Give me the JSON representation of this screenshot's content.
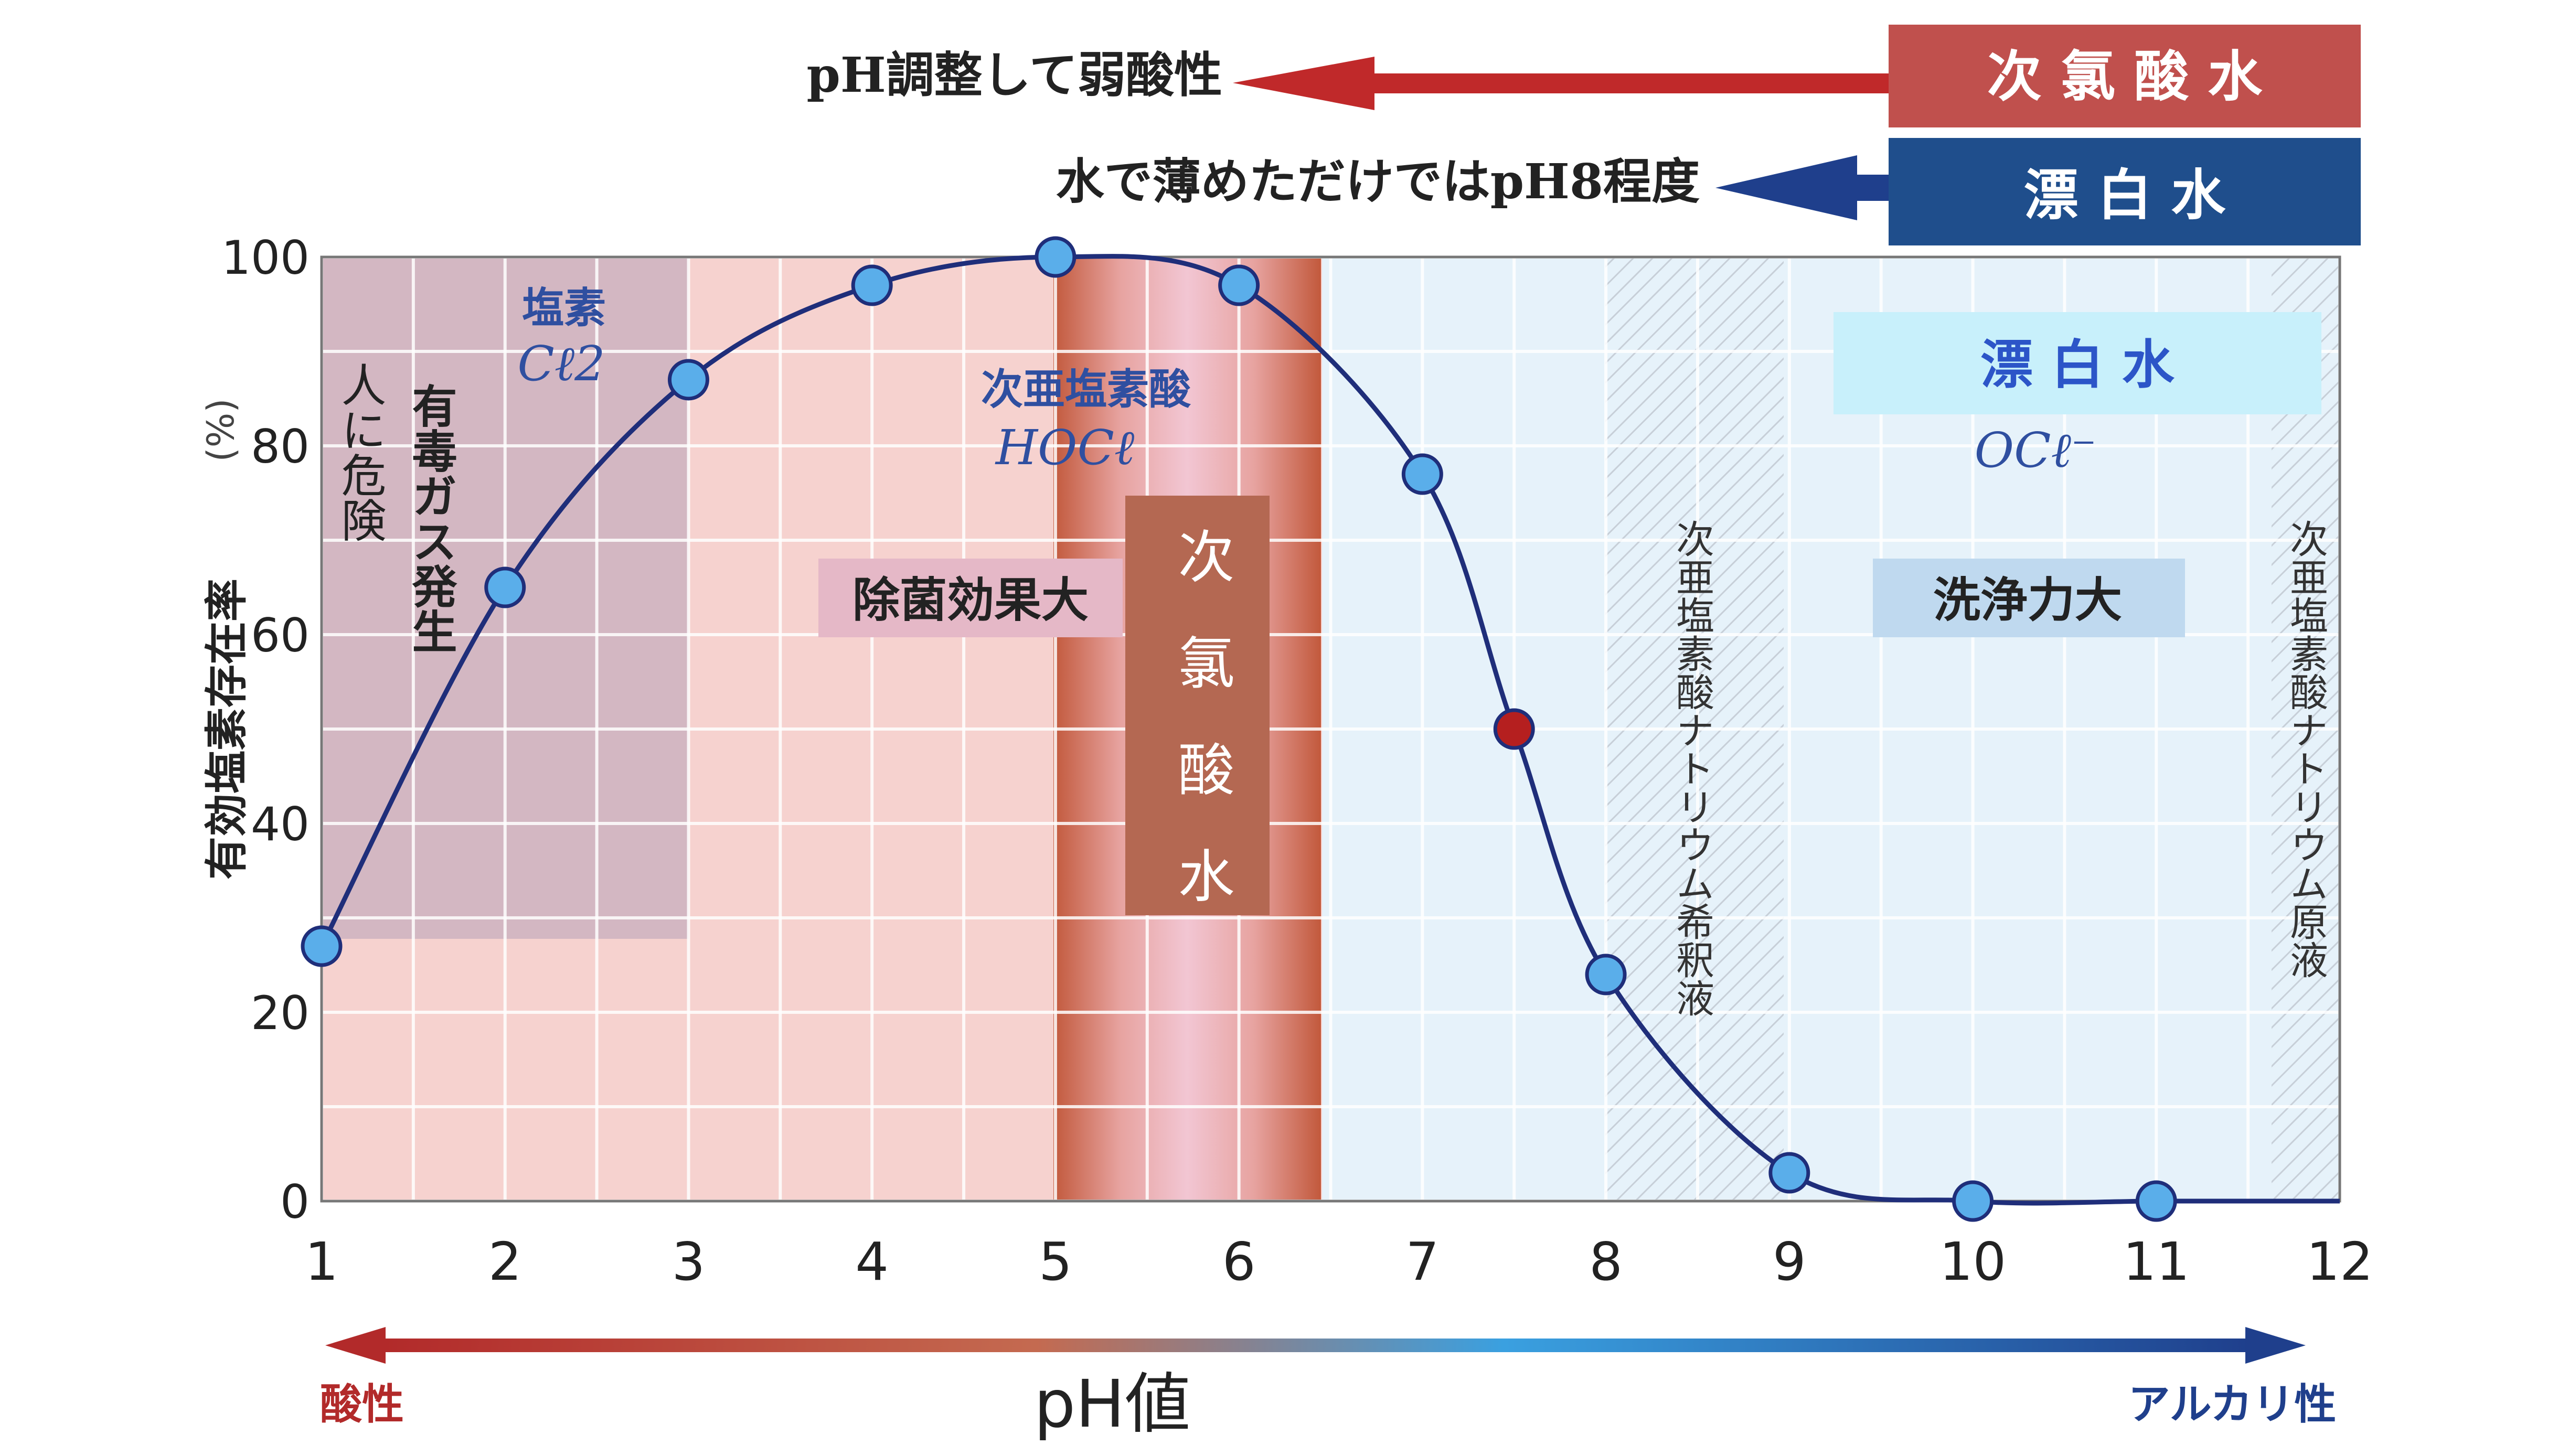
{
  "banner": {
    "top_left_text": "pH調整して弱酸性",
    "top_right_label": "次 氯 酸 水",
    "bottom_left_text": "水で薄めただけではpH8程度",
    "bottom_right_label": "漂 白 水",
    "top_color": "#c0504d",
    "bottom_color": "#1f4e8c"
  },
  "regions": {
    "cl2_title": "塩素",
    "cl2_formula": "Cℓ2",
    "toxic_col1": "有毒ガス発生",
    "toxic_col2": "人に危険",
    "hocl_title": "次亜塩素酸",
    "hocl_formula": "HOCℓ",
    "sterilization_label": "除菌効果大",
    "band_label": "次氯酸水",
    "bleach_label": "漂 白 水",
    "ocl_formula": "OCℓ⁻",
    "cleaning_label": "洗浄力大",
    "diluted_label": "次亜塩素酸ナトリウム希釈液",
    "stock_label": "次亜塩素酸ナトリウム原液"
  },
  "footer": {
    "xlabel": "pH値",
    "acid_label": "酸性",
    "alkaline_label": "アルカリ性"
  },
  "colors": {
    "acid_red": "#b22a2a",
    "alkaline_blue": "#1f3f8c",
    "curve": "#1f2e7a",
    "marker_fill": "#5aaeea",
    "marker_red": "#b51f1f"
  },
  "chart_data": {
    "type": "line",
    "title": "",
    "xlabel": "pH値",
    "ylabel": "有効塩素存在率",
    "ylabel_unit": "(%)",
    "xlim": [
      1,
      12
    ],
    "ylim": [
      0,
      100
    ],
    "x_ticks": [
      "1",
      "2",
      "3",
      "4",
      "5",
      "6",
      "7",
      "8",
      "9",
      "10",
      "11",
      "12"
    ],
    "y_ticks": [
      "0",
      "20",
      "40",
      "60",
      "80",
      "100"
    ],
    "grid": true,
    "series": [
      {
        "points": [
          {
            "x": 1,
            "y": 27
          },
          {
            "x": 2,
            "y": 65
          },
          {
            "x": 3,
            "y": 87
          },
          {
            "x": 4,
            "y": 97
          },
          {
            "x": 5,
            "y": 100
          },
          {
            "x": 6,
            "y": 97
          },
          {
            "x": 7,
            "y": 77
          },
          {
            "x": 7.5,
            "y": 50,
            "highlight": true
          },
          {
            "x": 8,
            "y": 24
          },
          {
            "x": 9,
            "y": 3
          },
          {
            "x": 10,
            "y": 0
          },
          {
            "x": 11,
            "y": 0
          }
        ]
      }
    ]
  }
}
